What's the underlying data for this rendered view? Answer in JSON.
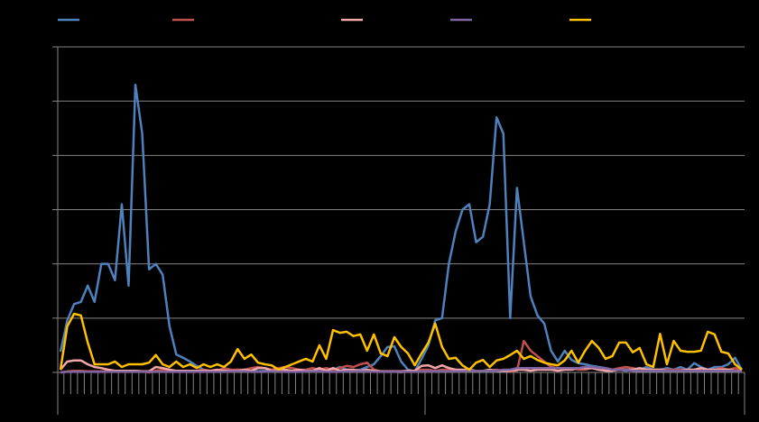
{
  "chart_data": {
    "type": "line",
    "categories": [
      null,
      null,
      null,
      null,
      null,
      null,
      null,
      null,
      null,
      null,
      null,
      null,
      null,
      null,
      null,
      null,
      null,
      null,
      null,
      null,
      null,
      null,
      null,
      null,
      null,
      null,
      null,
      null,
      null,
      null,
      null,
      null,
      null,
      null,
      null,
      null,
      null,
      null,
      null,
      null,
      null,
      null,
      null,
      null,
      null,
      null,
      null,
      null,
      null,
      null,
      null,
      null,
      null,
      null,
      null,
      null,
      null,
      null,
      null,
      null,
      null,
      null,
      null,
      null,
      null,
      null,
      null,
      null,
      null,
      null,
      null,
      null,
      null,
      null,
      null,
      null,
      null,
      null,
      null,
      null,
      null,
      null,
      null,
      null,
      null,
      null,
      null,
      null,
      null,
      null,
      null,
      null,
      null,
      null,
      null,
      null,
      null,
      null,
      null,
      null,
      null
    ],
    "ylim": [
      0,
      60
    ],
    "yticks": [
      0,
      10,
      20,
      30,
      40,
      50,
      60
    ],
    "grid": true,
    "series": [
      {
        "color": "#4f81bd",
        "values": [
          3.8,
          9.6,
          12.6,
          13,
          16,
          13,
          20,
          20,
          17,
          31,
          16,
          53,
          44,
          19,
          20,
          18,
          8.5,
          3.3,
          2.7,
          2,
          1.2,
          0.5,
          0.3,
          0.3,
          0.5,
          0.3,
          0.5,
          0.3,
          0.3,
          0.2,
          0.3,
          0.2,
          0.2,
          0.3,
          0.2,
          0.2,
          0.2,
          0.2,
          0.3,
          0.2,
          0.5,
          1,
          0.5,
          0.3,
          0.5,
          1,
          1.5,
          3,
          4.7,
          4.8,
          2,
          0.5,
          0.2,
          2.5,
          5,
          9.6,
          10,
          20,
          26,
          30,
          31,
          24,
          25,
          31,
          47,
          44,
          10,
          34,
          24,
          14,
          10.5,
          9,
          4,
          2,
          4,
          2.3,
          1.7,
          1.5,
          1.2,
          1,
          0.8,
          0.5,
          0.5,
          0.3,
          0.5,
          0.5,
          1,
          0.5,
          0.5,
          0.8,
          0.5,
          1,
          0.5,
          1.7,
          1,
          0.5,
          1,
          1,
          1.5,
          2.7,
          0.5
        ]
      },
      {
        "color": "#c0504d",
        "values": [
          0,
          0.2,
          0.3,
          0.3,
          0.2,
          0.2,
          0.2,
          0.2,
          0.2,
          0.2,
          0.2,
          0.2,
          0.2,
          0,
          0.3,
          0.5,
          0.3,
          0.3,
          0.3,
          0.2,
          0.3,
          0.5,
          0.3,
          0.3,
          0.8,
          0.5,
          0.5,
          0.5,
          0.8,
          1,
          0.8,
          0.5,
          0.8,
          1,
          0.8,
          0.5,
          0.5,
          0.8,
          0.5,
          0.8,
          0.5,
          0.8,
          1.2,
          1,
          1.5,
          1.8,
          0.5,
          0.2,
          0.2,
          0.2,
          0,
          0.3,
          0.3,
          0.5,
          0.5,
          0.3,
          0.5,
          0.5,
          0.5,
          0.3,
          0.3,
          0.3,
          0.3,
          0.3,
          0.5,
          0.3,
          0.2,
          0.3,
          5.8,
          4,
          3,
          2,
          1,
          0.8,
          0.8,
          0.8,
          0.5,
          0.5,
          0.8,
          0.5,
          0.5,
          0.5,
          0.8,
          1,
          0.8,
          0.5,
          0.5,
          0.5,
          0.5,
          0.5,
          0.5,
          0.5,
          0.5,
          0.5,
          0.5,
          0.5,
          0.5,
          0.8,
          0.5,
          0.8,
          0.3
        ]
      },
      {
        "color": "#f2a6a6",
        "values": [
          0.5,
          2,
          2.2,
          2.2,
          1.5,
          1,
          0.8,
          0.5,
          0.3,
          0.3,
          0.3,
          0.3,
          0.2,
          0.2,
          1,
          0.8,
          0.5,
          0.3,
          0.3,
          0.3,
          0.3,
          0.3,
          0.3,
          0.5,
          0.3,
          0.3,
          0.3,
          0.5,
          0.3,
          0.8,
          0.8,
          0.3,
          0.5,
          0.5,
          0.3,
          0.5,
          0.3,
          0.3,
          0.8,
          0.3,
          0.8,
          0.3,
          0.5,
          0.5,
          0.3,
          0.5,
          0.3,
          0.2,
          0.2,
          0.2,
          0.2,
          0.3,
          0.3,
          1.2,
          1.3,
          0.8,
          1.3,
          0.8,
          0.5,
          0.5,
          0.5,
          0.3,
          0.3,
          0.5,
          0.3,
          0.3,
          0.3,
          0.5,
          0.5,
          0.3,
          0.5,
          0.5,
          0.5,
          0.3,
          0.5,
          0.5,
          0.8,
          0.8,
          0.8,
          0.5,
          0.3,
          0.3,
          0.5,
          0.5,
          0.5,
          0.8,
          0.5,
          0.5,
          0.5,
          0.3,
          0.3,
          0.3,
          0.5,
          0.5,
          0.8,
          0.5,
          0.5,
          0.5,
          0.5,
          0.3,
          0.3
        ]
      },
      {
        "color": "#8064a2",
        "values": [
          0,
          0.1,
          0.1,
          0.1,
          0.1,
          0.1,
          0.1,
          0.1,
          0.1,
          0.1,
          0.1,
          0.1,
          0.1,
          0.1,
          0.1,
          0.1,
          0.1,
          0.1,
          0.1,
          0.1,
          0.1,
          0.1,
          0.1,
          0.1,
          0.1,
          0.2,
          0.2,
          0.2,
          0.1,
          0.1,
          0.1,
          0.2,
          0.2,
          0.1,
          0.1,
          0.1,
          0.2,
          0.2,
          0.2,
          0.1,
          0.1,
          0.1,
          0.2,
          0.2,
          0.2,
          0.2,
          0.1,
          0.1,
          0.1,
          0.1,
          0.1,
          0.1,
          0.1,
          0.2,
          0.2,
          0.2,
          0.2,
          0.2,
          0.2,
          0.2,
          0.3,
          0.3,
          0.3,
          0.3,
          0.3,
          0.5,
          0.5,
          0.8,
          0.8,
          0.8,
          0.8,
          0.8,
          0.8,
          0.8,
          0.8,
          0.8,
          0.8,
          1,
          1,
          0.8,
          0.8,
          0.5,
          0.5,
          0.5,
          0.3,
          0.3,
          0.3,
          0.3,
          0.3,
          0.3,
          0.3,
          0.3,
          0.3,
          0.3,
          0.3,
          0.3,
          0.3,
          0.3,
          0.3,
          0.3,
          0.2
        ]
      },
      {
        "color": "#ffc000",
        "values": [
          0.5,
          8.5,
          10.8,
          10.5,
          5.5,
          1.5,
          1.5,
          1.5,
          2,
          1,
          1.5,
          1.5,
          1.5,
          1.8,
          3.2,
          1.5,
          1,
          2,
          1,
          1.5,
          0.8,
          1.5,
          1,
          1.5,
          1,
          2,
          4.3,
          2.5,
          3.3,
          1.8,
          1.5,
          1.3,
          0.5,
          1,
          1.5,
          2,
          2.5,
          2,
          5,
          2.5,
          7.8,
          7.3,
          7.5,
          6.7,
          7,
          4,
          7,
          3.5,
          3,
          6.5,
          4.7,
          3.5,
          1.3,
          3.5,
          5.5,
          9,
          4.7,
          2.5,
          2.7,
          1.3,
          0.5,
          1.8,
          2.3,
          1,
          2.2,
          2.5,
          3.2,
          4,
          2.5,
          3,
          2.3,
          1.8,
          1.5,
          1.3,
          2.2,
          4,
          1.8,
          4,
          5.8,
          4.5,
          2.5,
          3,
          5.5,
          5.5,
          3.7,
          4.5,
          1.5,
          1,
          7.1,
          1.5,
          5.8,
          4,
          3.8,
          3.8,
          4,
          7.5,
          7,
          3.8,
          3.5,
          1.5,
          0.5
        ]
      }
    ]
  }
}
